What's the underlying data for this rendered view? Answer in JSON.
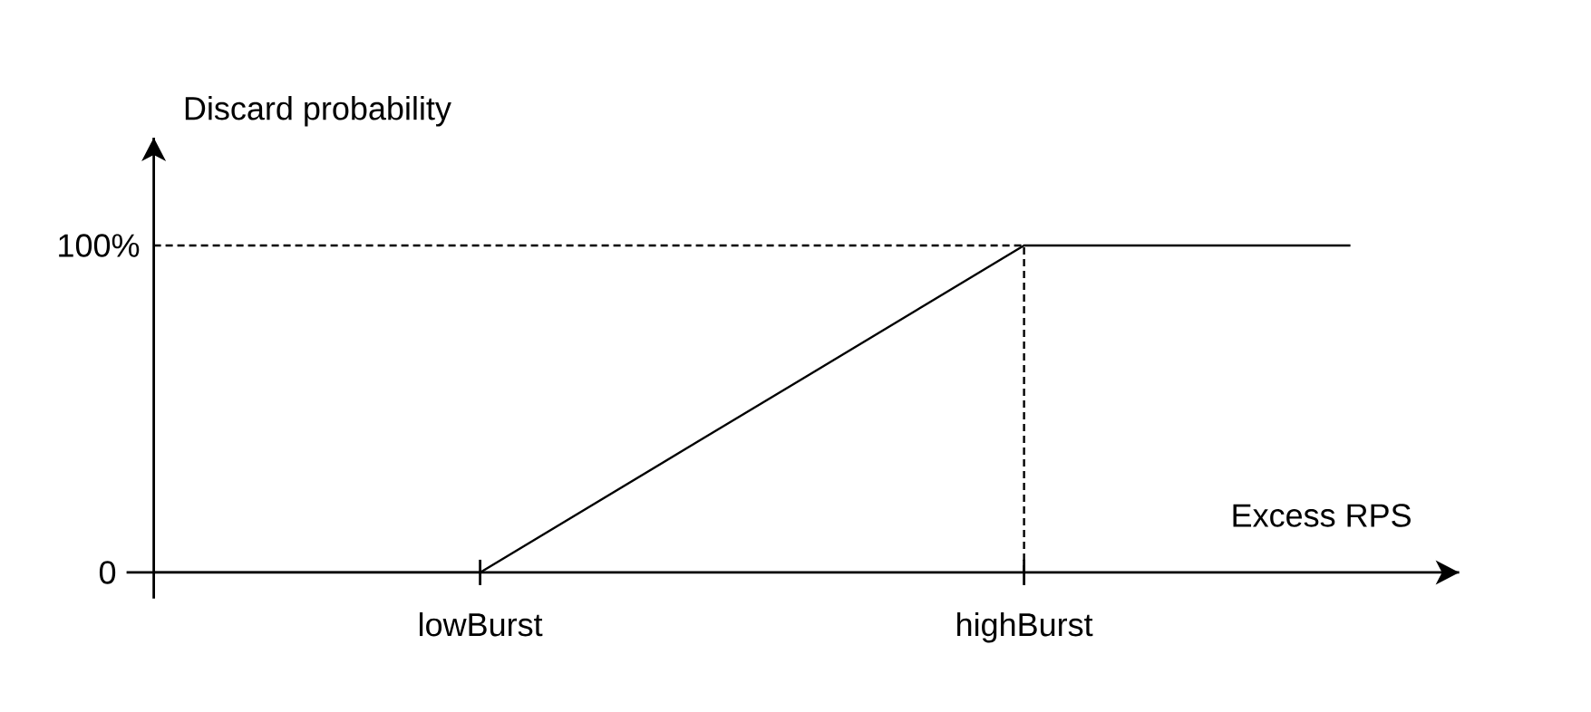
{
  "chart_data": {
    "type": "line",
    "xlabel": "Excess RPS",
    "ylabel": "Discard probability",
    "categories": [
      null,
      null,
      null,
      "lowBurst",
      null,
      null,
      null,
      null,
      "highBurst",
      null,
      null,
      null
    ],
    "series": [
      {
        "color": "#000000",
        "values": [
          0,
          0,
          0,
          0,
          20,
          40,
          60,
          80,
          100,
          100,
          100,
          100
        ]
      }
    ],
    "ylim": [
      -8,
      133
    ],
    "yticks": [
      0,
      {
        "value": 100,
        "label": "100%"
      }
    ],
    "ref_lines": [
      {
        "axis": "y",
        "value": 100,
        "color": "#000000",
        "line_style": "dashed"
      },
      {
        "axis": "x",
        "value": "highBurst",
        "color": "#000000",
        "line_style": "dashed"
      }
    ],
    "marker": "none",
    "line_style": "solid"
  }
}
